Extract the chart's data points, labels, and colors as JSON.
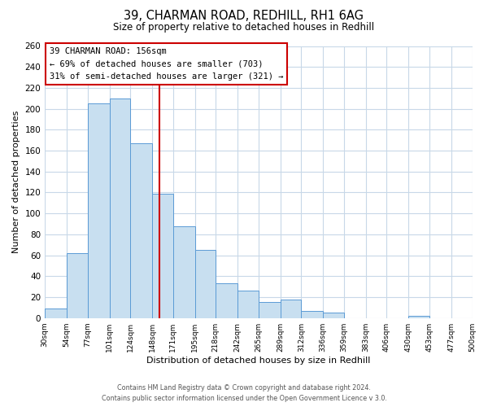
{
  "title": "39, CHARMAN ROAD, REDHILL, RH1 6AG",
  "subtitle": "Size of property relative to detached houses in Redhill",
  "xlabel": "Distribution of detached houses by size in Redhill",
  "ylabel": "Number of detached properties",
  "footer_line1": "Contains HM Land Registry data © Crown copyright and database right 2024.",
  "footer_line2": "Contains public sector information licensed under the Open Government Licence v 3.0.",
  "bar_edges": [
    30,
    54,
    77,
    101,
    124,
    148,
    171,
    195,
    218,
    242,
    265,
    289,
    312,
    336,
    359,
    383,
    406,
    430,
    453,
    477,
    500
  ],
  "bar_heights": [
    9,
    62,
    205,
    210,
    167,
    119,
    88,
    65,
    33,
    26,
    15,
    18,
    7,
    5,
    0,
    0,
    0,
    2,
    0,
    0
  ],
  "bar_color": "#c8dff0",
  "bar_edgecolor": "#5b9bd5",
  "property_size": 156,
  "marker_line_color": "#cc0000",
  "annotation_box_edgecolor": "#cc0000",
  "annotation_text_line1": "39 CHARMAN ROAD: 156sqm",
  "annotation_text_line2": "← 69% of detached houses are smaller (703)",
  "annotation_text_line3": "31% of semi-detached houses are larger (321) →",
  "ylim": [
    0,
    260
  ],
  "yticks": [
    0,
    20,
    40,
    60,
    80,
    100,
    120,
    140,
    160,
    180,
    200,
    220,
    240,
    260
  ],
  "tick_labels": [
    "30sqm",
    "54sqm",
    "77sqm",
    "101sqm",
    "124sqm",
    "148sqm",
    "171sqm",
    "195sqm",
    "218sqm",
    "242sqm",
    "265sqm",
    "289sqm",
    "312sqm",
    "336sqm",
    "359sqm",
    "383sqm",
    "406sqm",
    "430sqm",
    "453sqm",
    "477sqm",
    "500sqm"
  ],
  "background_color": "#ffffff",
  "grid_color": "#c8d8e8"
}
